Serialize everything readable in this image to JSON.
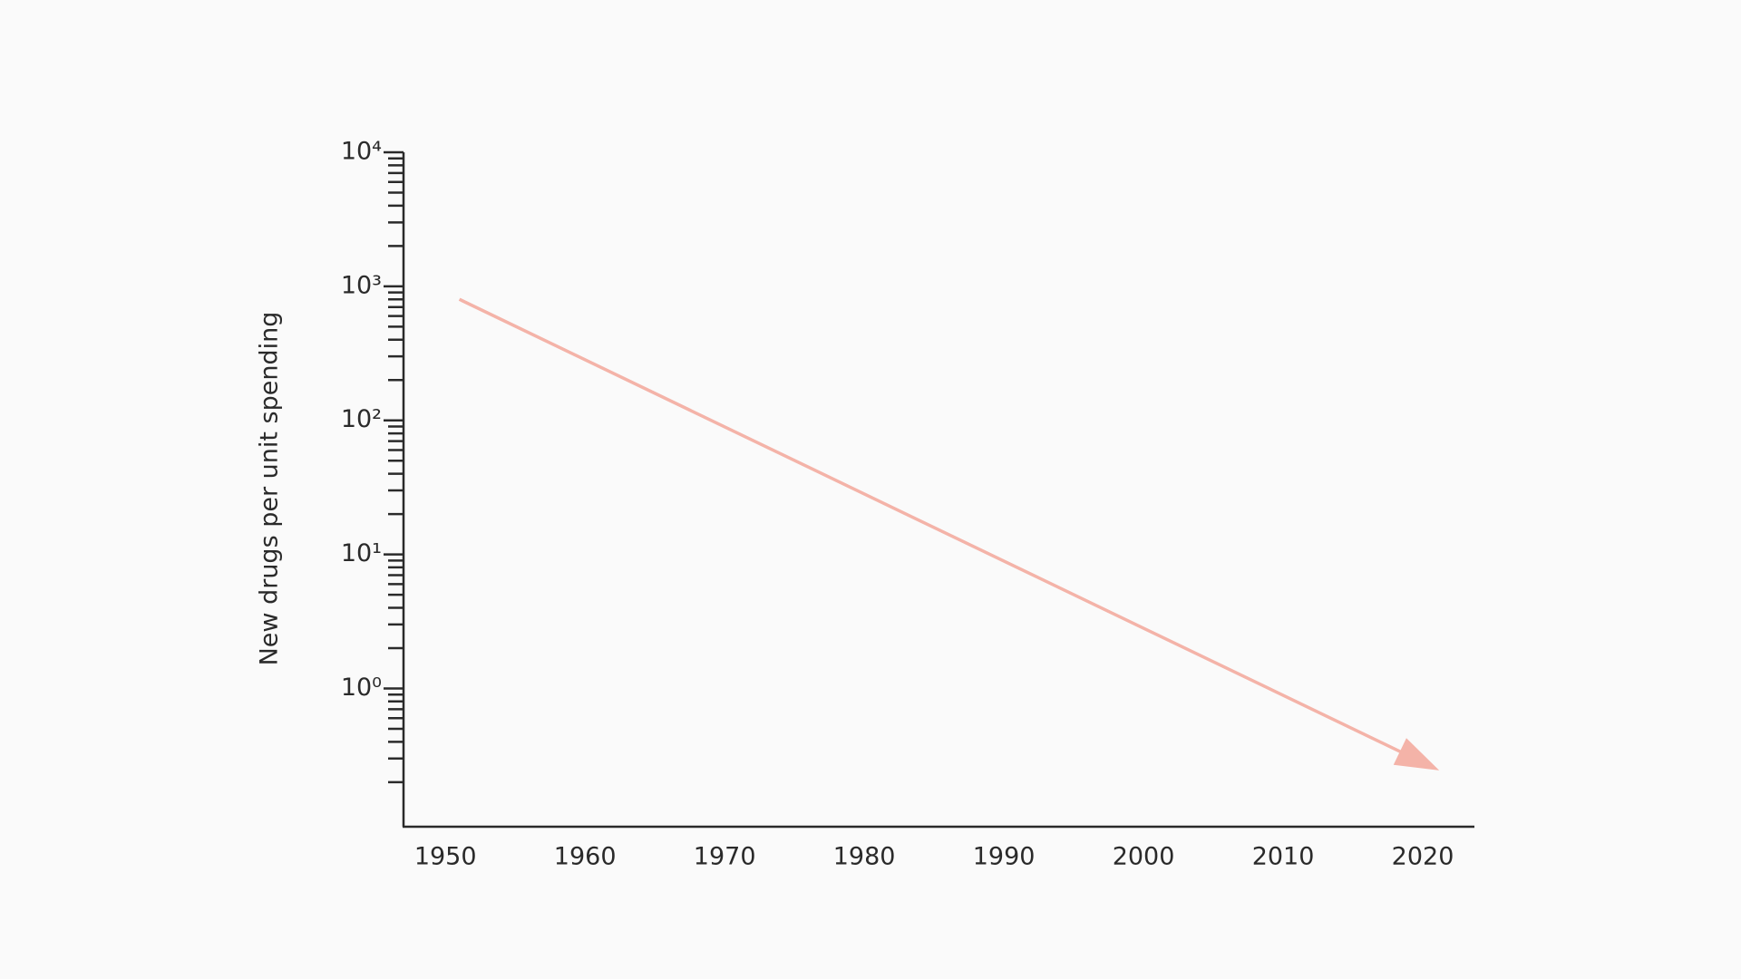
{
  "chart_data": {
    "type": "line",
    "y_label": "New drugs per unit spending",
    "x": [
      1951,
      2021
    ],
    "series": [
      {
        "color": "#f4b3a8",
        "values": [
          800,
          0.25
        ]
      }
    ],
    "xlim": [
      1947,
      2023.7
    ],
    "xticks": [
      1950,
      1960,
      1970,
      1980,
      1990,
      2000,
      2010,
      2020
    ],
    "ylim": [
      0.093,
      10000
    ],
    "log_y": true,
    "y_minor_ticks": true,
    "arrow_end": true,
    "yticks": [
      {
        "value": 1,
        "label": "10⁰"
      },
      {
        "value": 10,
        "label": "10¹"
      },
      {
        "value": 100,
        "label": "10²"
      },
      {
        "value": 1000,
        "label": "10³"
      },
      {
        "value": 10000,
        "label": "10⁴"
      }
    ]
  }
}
